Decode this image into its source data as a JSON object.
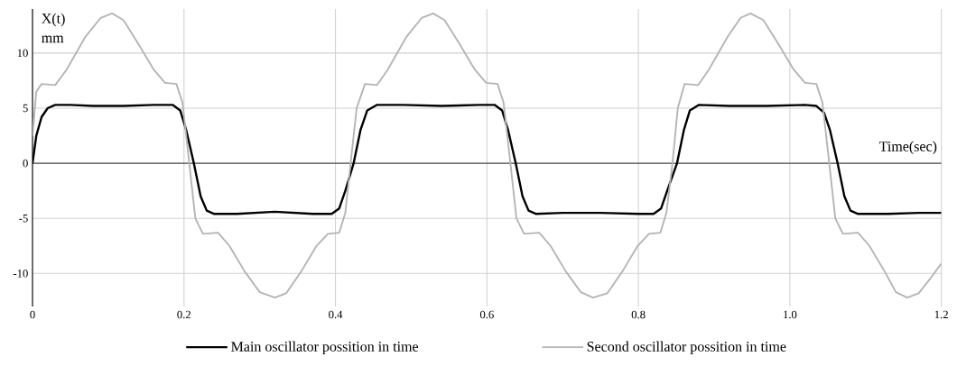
{
  "chart_data": {
    "type": "line",
    "xlabel": "Time(sec)",
    "ylabel": "X(t) mm",
    "xlim": [
      0,
      1.2
    ],
    "ylim": [
      -13,
      14
    ],
    "xticks": [
      0,
      0.2,
      0.4,
      0.6,
      0.8,
      {
        "value": 1.0,
        "label": "1.0"
      },
      1.2
    ],
    "yticks": [
      -10,
      -5,
      0,
      5,
      10
    ],
    "grid": true,
    "legend": "bottom",
    "line_style": "solid",
    "marker": "none",
    "series": [
      {
        "name": "Main oscillator possition in time",
        "color": "#000000",
        "x": [
          0,
          0.005,
          0.012,
          0.02,
          0.03,
          0.05,
          0.08,
          0.12,
          0.16,
          0.185,
          0.195,
          0.203,
          0.213,
          0.222,
          0.23,
          0.24,
          0.27,
          0.32,
          0.37,
          0.395,
          0.405,
          0.413,
          0.424,
          0.433,
          0.442,
          0.455,
          0.49,
          0.54,
          0.59,
          0.61,
          0.62,
          0.628,
          0.638,
          0.647,
          0.655,
          0.665,
          0.7,
          0.75,
          0.8,
          0.82,
          0.83,
          0.838,
          0.851,
          0.86,
          0.868,
          0.88,
          0.92,
          0.97,
          1.02,
          1.035,
          1.045,
          1.053,
          1.063,
          1.072,
          1.08,
          1.09,
          1.13,
          1.17,
          1.2
        ],
        "values": [
          0,
          2.5,
          4.2,
          5.0,
          5.3,
          5.3,
          5.2,
          5.2,
          5.3,
          5.3,
          4.8,
          3.0,
          0,
          -3.0,
          -4.3,
          -4.6,
          -4.6,
          -4.4,
          -4.6,
          -4.6,
          -4.1,
          -2.5,
          0,
          3.0,
          4.8,
          5.3,
          5.3,
          5.2,
          5.3,
          5.3,
          4.8,
          3.0,
          0,
          -3.0,
          -4.3,
          -4.6,
          -4.5,
          -4.5,
          -4.6,
          -4.6,
          -4.1,
          -2.5,
          0,
          3.0,
          4.8,
          5.3,
          5.2,
          5.2,
          5.3,
          5.2,
          4.6,
          3.0,
          0,
          -3.0,
          -4.3,
          -4.6,
          -4.6,
          -4.5,
          -4.5
        ]
      },
      {
        "name": "Second oscillator possition in time",
        "color": "#b4b4b4",
        "x": [
          0,
          0.005,
          0.012,
          0.03,
          0.045,
          0.07,
          0.09,
          0.105,
          0.12,
          0.14,
          0.16,
          0.175,
          0.19,
          0.198,
          0.207,
          0.215,
          0.225,
          0.245,
          0.26,
          0.28,
          0.3,
          0.32,
          0.335,
          0.355,
          0.375,
          0.39,
          0.405,
          0.413,
          0.42,
          0.428,
          0.439,
          0.455,
          0.469,
          0.494,
          0.514,
          0.529,
          0.544,
          0.564,
          0.584,
          0.599,
          0.614,
          0.622,
          0.631,
          0.639,
          0.649,
          0.669,
          0.684,
          0.704,
          0.724,
          0.74,
          0.759,
          0.779,
          0.799,
          0.814,
          0.829,
          0.837,
          0.845,
          0.852,
          0.861,
          0.879,
          0.893,
          0.918,
          0.935,
          0.948,
          0.965,
          0.985,
          1.005,
          1.02,
          1.035,
          1.043,
          1.052,
          1.06,
          1.07,
          1.09,
          1.105,
          1.125,
          1.14,
          1.155,
          1.17,
          1.185,
          1.2
        ],
        "values": [
          2.5,
          6.5,
          7.2,
          7.1,
          8.5,
          11.5,
          13.2,
          13.6,
          13.0,
          10.8,
          8.5,
          7.3,
          7.2,
          5.5,
          0,
          -5.0,
          -6.4,
          -6.3,
          -7.5,
          -9.8,
          -11.7,
          -12.2,
          -11.8,
          -9.8,
          -7.5,
          -6.4,
          -6.3,
          -4.5,
          0,
          5.0,
          7.2,
          7.1,
          8.5,
          11.5,
          13.2,
          13.6,
          13.0,
          10.8,
          8.5,
          7.3,
          7.2,
          5.5,
          0,
          -5.0,
          -6.4,
          -6.3,
          -7.5,
          -9.8,
          -11.7,
          -12.2,
          -11.8,
          -9.8,
          -7.5,
          -6.4,
          -6.3,
          -4.5,
          0,
          5.0,
          7.2,
          7.1,
          8.5,
          11.5,
          13.2,
          13.6,
          13.0,
          10.8,
          8.5,
          7.3,
          7.2,
          5.5,
          0,
          -5.0,
          -6.4,
          -6.3,
          -7.5,
          -9.8,
          -11.7,
          -12.2,
          -11.8,
          -10.5,
          -9.1
        ]
      }
    ]
  }
}
